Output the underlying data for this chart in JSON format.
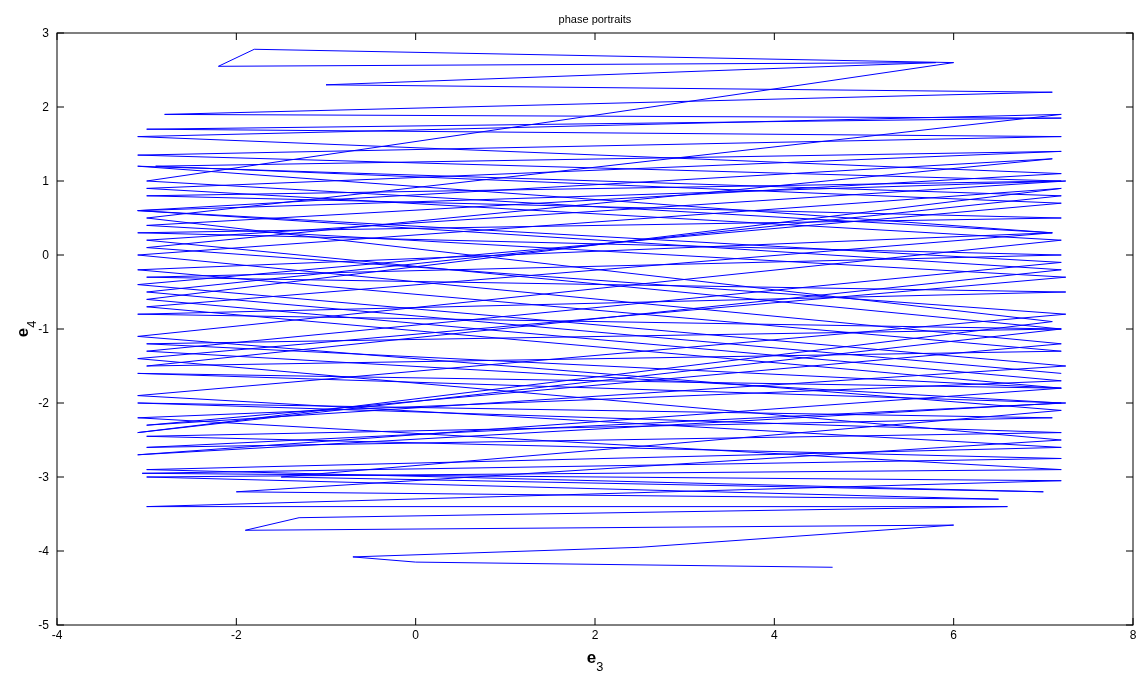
{
  "chart_data": {
    "type": "line",
    "title": "phase portraits",
    "xlabel": "e$_{3}$",
    "ylabel": "e$_{4}$",
    "xlim": [
      -4,
      8
    ],
    "ylim": [
      -5,
      3
    ],
    "xticks": [
      -4,
      -2,
      0,
      2,
      4,
      6,
      8
    ],
    "yticks": [
      -5,
      -4,
      -3,
      -2,
      -1,
      0,
      1,
      2,
      3
    ],
    "grid": false,
    "marker": "none",
    "line_style": "solid",
    "series": [
      {
        "color": "#0000ff",
        "x": [
          4.65,
          0.0,
          -0.7,
          2.5,
          6.0,
          -1.9,
          -1.3,
          6.6,
          -3.0,
          7.2,
          -3.05,
          7.2,
          -3.0,
          7.1,
          -3.1,
          7.2,
          -3.0,
          7.25,
          -3.1,
          7.2,
          -3.0,
          7.2,
          -3.1,
          7.25,
          -3.0,
          7.2,
          -3.1,
          7.2,
          -3.0,
          7.2,
          -3.1,
          7.2,
          -3.0,
          7.2,
          -2.8,
          7.1,
          -1.0,
          5.8,
          -2.2,
          -1.8,
          6.0,
          -3.0,
          7.1,
          -3.1,
          7.2,
          -3.0,
          7.2,
          -3.1,
          7.1,
          -3.0,
          7.25,
          -3.1,
          7.2,
          -3.0,
          7.0,
          -1.5,
          7.2,
          -3.1,
          7.2,
          -3.0,
          7.2,
          -2.9,
          7.2,
          -3.1,
          7.25,
          -3.0,
          7.2,
          -3.1,
          7.2,
          -3.0,
          7.2,
          -3.1,
          7.2,
          -3.0,
          6.5,
          -2.0,
          7.2,
          -3.1,
          7.25,
          -3.0,
          7.2,
          -3.1,
          7.2,
          -3.0,
          7.1,
          -3.1,
          7.2,
          -3.0,
          7.25,
          -3.1,
          7.2,
          -3.0,
          7.2,
          -3.1,
          7.2,
          -3.0,
          7.1,
          -3.1,
          7.2,
          -3.0,
          7.2
        ],
        "values": [
          -4.22,
          -4.15,
          -4.08,
          -3.95,
          -3.65,
          -3.72,
          -3.55,
          -3.4,
          -3.4,
          -3.05,
          -2.95,
          -2.75,
          -2.45,
          -2.2,
          -2.0,
          -2.4,
          -2.6,
          -2.0,
          -1.6,
          -1.8,
          -1.2,
          -1.0,
          -0.8,
          -0.5,
          -0.3,
          0.0,
          0.3,
          0.5,
          0.8,
          1.0,
          1.35,
          1.6,
          1.7,
          1.85,
          1.9,
          2.2,
          2.3,
          2.6,
          2.55,
          2.78,
          2.6,
          1.0,
          0.3,
          -0.2,
          -1.3,
          -1.5,
          -0.2,
          0.6,
          1.3,
          0.1,
          -0.8,
          -1.9,
          -2.6,
          -2.9,
          -3.2,
          -3.0,
          -2.1,
          -1.1,
          0.2,
          0.9,
          1.4,
          1.2,
          0.7,
          -0.4,
          -1.5,
          -2.3,
          -1.2,
          0.0,
          0.9,
          -0.6,
          -1.7,
          -2.2,
          -2.9,
          -3.0,
          -3.3,
          -3.2,
          -2.5,
          -1.4,
          -0.3,
          0.4,
          1.1,
          1.6,
          1.9,
          0.5,
          -0.9,
          -2.4,
          -1.0,
          0.2,
          1.0,
          0.6,
          -0.1,
          -1.3,
          -2.0,
          -2.7,
          -1.8,
          -0.7,
          0.3,
          1.2,
          0.8,
          -0.5,
          -1.6
        ]
      }
    ]
  }
}
